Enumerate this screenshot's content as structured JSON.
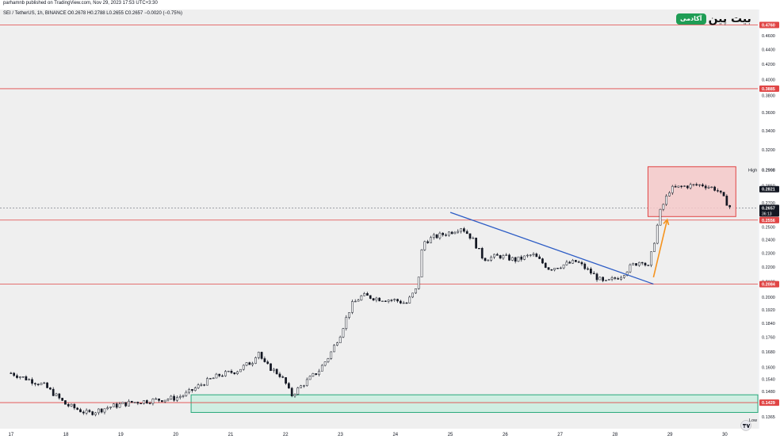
{
  "header": {
    "publish_line": "parhamnb published on TradingView.com, Nov 29, 2023 17:53 UTC+3:30",
    "ohlc_line": "SEI / TetherUS, 1h, BINANCE  O0.2678  H0.2788  L0.2655  C0.2657  −0.0020 (−0.75%)"
  },
  "logo": {
    "badge": "آکادمی",
    "word": "بیت پین"
  },
  "colors": {
    "background": "#efefef",
    "candle": "#131722",
    "level_line": "#e04545",
    "trendline": "#2c5cc5",
    "arrow": "#f5931e",
    "rect_fill": "#f4c9c9",
    "rect_stroke": "#e04545",
    "zone_fill": "#cfeee2",
    "zone_stroke": "#27a87a",
    "price_label_bg": "#e04545",
    "last_price_bg": "#131722"
  },
  "chart_data": {
    "type": "candlestick",
    "symbol": "SEI / TetherUS",
    "timeframe": "1h",
    "exchange": "BINANCE",
    "y_scale": "log",
    "ylim": [
      0.1315,
      0.5
    ],
    "x_range": [
      16.8,
      30.6
    ],
    "price_ticks": [
      "0.5000",
      "0.4600",
      "0.4400",
      "0.4200",
      "0.4000",
      "0.3800",
      "0.3600",
      "0.3400",
      "0.3200",
      "0.2998",
      "0.2850",
      "0.2700",
      "0.2500",
      "0.2400",
      "0.2300",
      "0.2200",
      "0.2100",
      "0.2000",
      "0.1920",
      "0.1840",
      "0.1760",
      "0.1680",
      "0.1600",
      "0.1540",
      "0.1480",
      "0.1429",
      "0.1365",
      "0.1321"
    ],
    "date_ticks": [
      {
        "label": "17",
        "day": 17
      },
      {
        "label": "18",
        "day": 18
      },
      {
        "label": "19",
        "day": 19
      },
      {
        "label": "20",
        "day": 20
      },
      {
        "label": "21",
        "day": 21
      },
      {
        "label": "22",
        "day": 22
      },
      {
        "label": "23",
        "day": 23
      },
      {
        "label": "24",
        "day": 24
      },
      {
        "label": "25",
        "day": 25
      },
      {
        "label": "26",
        "day": 26
      },
      {
        "label": "27",
        "day": 27
      },
      {
        "label": "28",
        "day": 28
      },
      {
        "label": "29",
        "day": 29
      },
      {
        "label": "30",
        "day": 30
      }
    ],
    "levels": [
      {
        "price": 0.476,
        "label": "0.4760"
      },
      {
        "price": 0.3885,
        "label": "0.3885"
      },
      {
        "price": 0.2556,
        "label": "0.2556"
      },
      {
        "price": 0.2084,
        "label": "0.2084"
      },
      {
        "price": 0.1429,
        "label": "0.1429"
      }
    ],
    "last_price": {
      "price": 0.2657,
      "label": "0.2657",
      "countdown": "36:13"
    },
    "high_marker": {
      "price": 0.2821,
      "label": "0.2821",
      "tag": "High",
      "high_value": "0.2998"
    },
    "low_tag": "Low",
    "dotted_line_price": 0.2657,
    "trendline": {
      "from": [
        25.0,
        0.262
      ],
      "to": [
        28.7,
        0.2085
      ]
    },
    "arrow": {
      "from": [
        28.7,
        0.213
      ],
      "to": [
        28.95,
        0.256
      ]
    },
    "consolidation_box": {
      "x_from": 28.6,
      "x_to": 30.2,
      "p_low": 0.2585,
      "p_high": 0.303
    },
    "demand_zone": {
      "x_from": 20.28,
      "x_to": 30.6,
      "p_low": 0.1385,
      "p_high": 0.1465
    },
    "anchors": [
      [
        17.0,
        0.157
      ],
      [
        17.6,
        0.151
      ],
      [
        18.0,
        0.142
      ],
      [
        18.4,
        0.138
      ],
      [
        18.8,
        0.141
      ],
      [
        19.2,
        0.143
      ],
      [
        19.6,
        0.144
      ],
      [
        20.0,
        0.145
      ],
      [
        20.2,
        0.147
      ],
      [
        20.5,
        0.152
      ],
      [
        20.8,
        0.156
      ],
      [
        21.1,
        0.158
      ],
      [
        21.4,
        0.163
      ],
      [
        21.5,
        0.169
      ],
      [
        21.6,
        0.162
      ],
      [
        21.9,
        0.156
      ],
      [
        22.0,
        0.152
      ],
      [
        22.1,
        0.146
      ],
      [
        22.3,
        0.151
      ],
      [
        22.6,
        0.158
      ],
      [
        22.8,
        0.166
      ],
      [
        23.0,
        0.178
      ],
      [
        23.2,
        0.195
      ],
      [
        23.4,
        0.201
      ],
      [
        23.7,
        0.199
      ],
      [
        24.0,
        0.198
      ],
      [
        24.2,
        0.196
      ],
      [
        24.4,
        0.206
      ],
      [
        24.5,
        0.238
      ],
      [
        24.7,
        0.242
      ],
      [
        25.0,
        0.246
      ],
      [
        25.2,
        0.25
      ],
      [
        25.4,
        0.241
      ],
      [
        25.6,
        0.226
      ],
      [
        25.9,
        0.228
      ],
      [
        26.2,
        0.225
      ],
      [
        26.5,
        0.229
      ],
      [
        26.8,
        0.219
      ],
      [
        27.0,
        0.221
      ],
      [
        27.3,
        0.224
      ],
      [
        27.6,
        0.215
      ],
      [
        27.8,
        0.209
      ],
      [
        28.1,
        0.214
      ],
      [
        28.3,
        0.221
      ],
      [
        28.5,
        0.225
      ],
      [
        28.6,
        0.219
      ],
      [
        28.7,
        0.236
      ],
      [
        28.82,
        0.262
      ],
      [
        29.0,
        0.282
      ],
      [
        29.3,
        0.285
      ],
      [
        29.6,
        0.286
      ],
      [
        29.85,
        0.282
      ],
      [
        30.1,
        0.266
      ]
    ]
  }
}
